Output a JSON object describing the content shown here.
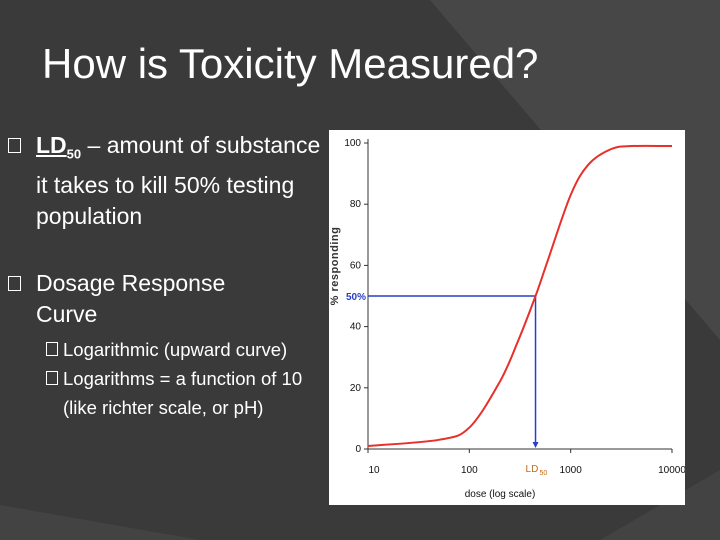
{
  "slide": {
    "title": "How is Toxicity Measured?",
    "bullets": [
      {
        "ld_label": "LD",
        "ld_subscript": "50",
        "text": " – amount of substance it takes to kill 50% testing population"
      },
      {
        "text": "Dosage Response Curve"
      }
    ],
    "sub_bullets": [
      "Logarithmic (upward curve)",
      "Logarithms = a function of 10 (like richter scale, or pH)"
    ]
  },
  "chart_data": {
    "type": "line",
    "xlabel": "dose (log scale)",
    "ylabel": "% responding",
    "x_scale": "log",
    "xlim": [
      10,
      10000
    ],
    "ylim": [
      0,
      100
    ],
    "x_ticks": [
      "10",
      "100",
      "1000",
      "10000"
    ],
    "y_ticks": [
      "0",
      "20",
      "40",
      "60",
      "80",
      "100"
    ],
    "series": [
      {
        "color": "#e8302a",
        "points": [
          [
            10,
            1
          ],
          [
            50,
            3
          ],
          [
            100,
            7
          ],
          [
            200,
            22
          ],
          [
            300,
            35
          ],
          [
            450,
            50
          ],
          [
            600,
            62
          ],
          [
            1000,
            83
          ],
          [
            1500,
            93
          ],
          [
            2500,
            98
          ],
          [
            4000,
            99
          ],
          [
            10000,
            99
          ]
        ]
      }
    ],
    "markers": [
      {
        "label": "50%",
        "y": 50,
        "color": "#2a3fc8"
      },
      {
        "label": "LD",
        "label_subscript": "50",
        "x": 450,
        "color": "#2a3fc8"
      }
    ]
  }
}
